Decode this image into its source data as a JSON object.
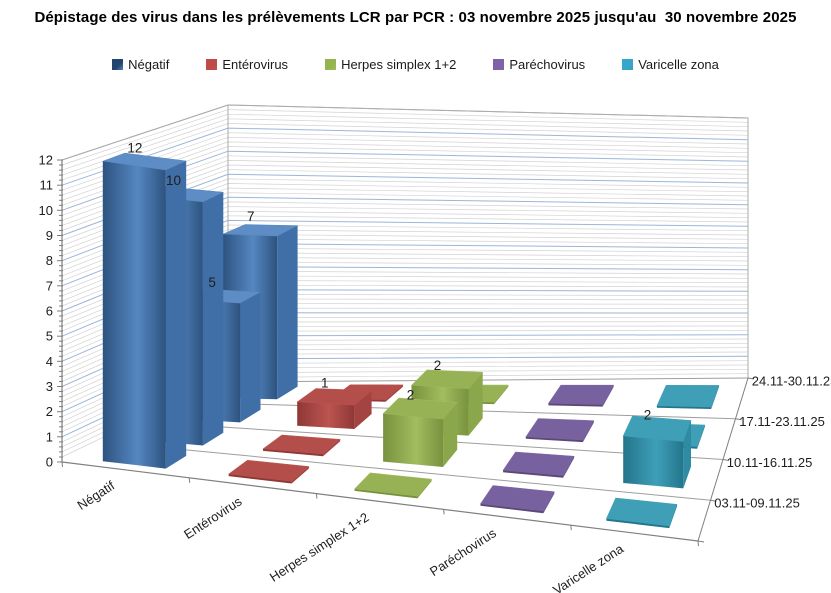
{
  "chart_data": {
    "type": "bar",
    "projection": "3d-column",
    "title": "Dépistage des virus dans les prélèvements LCR par PCR : 03 novembre 2025 jusqu'au  30 novembre 2025",
    "categories": [
      "Négatif",
      "Entérovirus",
      "Herpes simplex 1+2",
      "Paréchovirus",
      "Varicelle zona"
    ],
    "depth_rows": [
      "03.11-09.11.25",
      "10.11-16.11.25",
      "17.11-23.11.25",
      "24.11-30.11.25"
    ],
    "series": [
      {
        "name": "Négatif",
        "values": [
          12,
          10,
          5,
          7
        ],
        "front_dark": "#2D5380",
        "front_light": "#5587C1",
        "side": "#406EA6",
        "top": "#5E8DC6",
        "legend": "#24466E"
      },
      {
        "name": "Entérovirus",
        "values": [
          0,
          0,
          1,
          0
        ],
        "front_dark": "#8F3836",
        "front_light": "#BC5450",
        "side": "#A34440",
        "top": "#B44E4A",
        "legend": "#BE4B45"
      },
      {
        "name": "Herpes simplex 1+2",
        "values": [
          0,
          2,
          2,
          0
        ],
        "front_dark": "#78923E",
        "front_light": "#A2BC5F",
        "side": "#8AA74B",
        "top": "#96B254",
        "legend": "#94B54D"
      },
      {
        "name": "Paréchovirus",
        "values": [
          0,
          0,
          0,
          0
        ],
        "front_dark": "#5B4876",
        "front_light": "#7E68A4",
        "side": "#6B5590",
        "top": "#77619E",
        "legend": "#7E62A8"
      },
      {
        "name": "Varicelle zona",
        "values": [
          0,
          2,
          0,
          0
        ],
        "front_dark": "#23758B",
        "front_light": "#3E9FB9",
        "side": "#2E8BA3",
        "top": "#3F9FB7",
        "legend": "#35A7CB"
      }
    ],
    "ylim": [
      0,
      12
    ],
    "y_major": 1,
    "y_minor": 0.2,
    "y_tick_labels": [
      "0",
      "1",
      "2",
      "3",
      "4",
      "5",
      "6",
      "7",
      "8",
      "9",
      "10",
      "11",
      "12"
    ],
    "value_labels_shown": "nonzero values only",
    "legend_position": "top",
    "grid": true
  },
  "colors": {
    "background": "#FFFFFF",
    "grid_major": "#9CB6D9",
    "grid_minor": "#D2D2D2",
    "wall_edge": "#ABABAB",
    "floor_line": "#9E9E9E",
    "axis_line": "#7F7F7F",
    "text": "#1E1E1E"
  }
}
